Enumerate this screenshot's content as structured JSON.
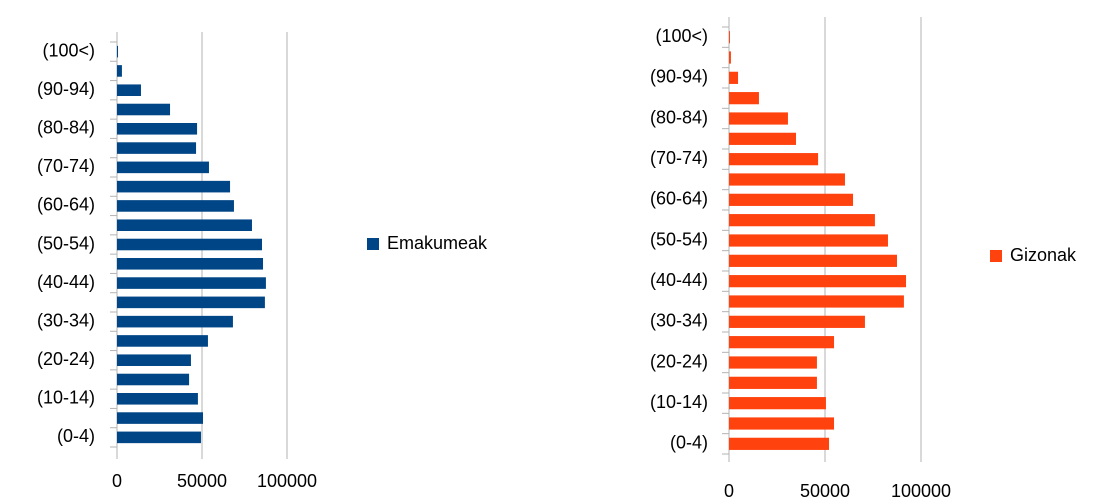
{
  "chart_data": [
    {
      "type": "bar",
      "horizontal": true,
      "categories": [
        "(0-4)",
        null,
        "(10-14)",
        null,
        "(20-24)",
        null,
        "(30-34)",
        null,
        "(40-44)",
        null,
        "(50-54)",
        null,
        "(60-64)",
        null,
        "(70-74)",
        null,
        "(80-84)",
        null,
        "(90-94)",
        null,
        "(100<)"
      ],
      "series": [
        {
          "name": "Emakumeak",
          "color": "#004586",
          "values": [
            49400,
            50600,
            47600,
            42400,
            43500,
            53500,
            68200,
            87000,
            87600,
            85900,
            85300,
            79400,
            68800,
            66500,
            54100,
            46500,
            47100,
            31200,
            14100,
            2900,
            600
          ]
        }
      ],
      "xlim": [
        0,
        100000
      ],
      "xticks": [
        0,
        50000,
        100000
      ],
      "grid": true,
      "legend": "right"
    },
    {
      "type": "bar",
      "horizontal": true,
      "categories": [
        "(0-4)",
        null,
        "(10-14)",
        null,
        "(20-24)",
        null,
        "(30-34)",
        null,
        "(40-44)",
        null,
        "(50-54)",
        null,
        "(60-64)",
        null,
        "(70-74)",
        null,
        "(80-84)",
        null,
        "(90-94)",
        null,
        "(100<)"
      ],
      "series": [
        {
          "name": "Gizonak",
          "color": "#ff420e",
          "values": [
            52100,
            54700,
            50500,
            45800,
            45800,
            54700,
            70800,
            91100,
            92200,
            87500,
            82800,
            76000,
            64600,
            60400,
            46400,
            34900,
            30700,
            15600,
            4700,
            1000,
            500
          ]
        }
      ],
      "xlim": [
        0,
        100000
      ],
      "xticks": [
        0,
        50000,
        100000
      ],
      "grid": true,
      "legend": "right"
    }
  ]
}
